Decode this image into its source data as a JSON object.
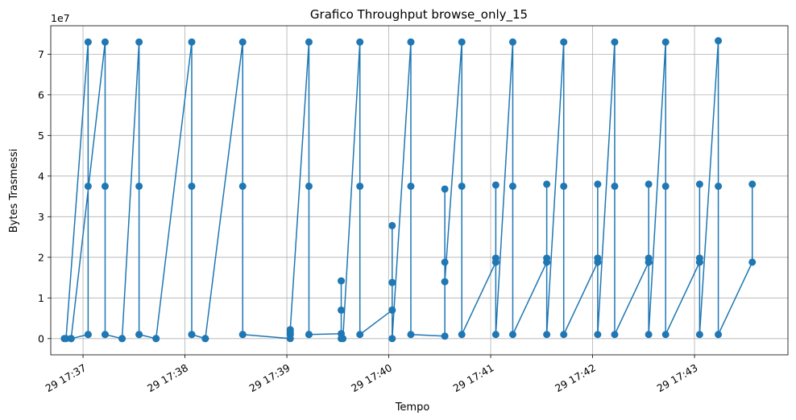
{
  "chart_data": {
    "type": "line",
    "title": "Grafico Throughput browse_only_15",
    "xlabel": "Tempo",
    "ylabel": "Bytes Trasmessi",
    "y_offset_label": "1e7",
    "y_scale": 10000000,
    "grid": true,
    "marker": "circle",
    "series_color": "#1f77b4",
    "ylim": [
      -0.4,
      7.7
    ],
    "xlim": [
      "17:36:41",
      "17:43:55"
    ],
    "x_ticks": [
      {
        "time": "17:37:00",
        "label": "29 17:37"
      },
      {
        "time": "17:38:00",
        "label": "29 17:38"
      },
      {
        "time": "17:39:00",
        "label": "29 17:39"
      },
      {
        "time": "17:40:00",
        "label": "29 17:40"
      },
      {
        "time": "17:41:00",
        "label": "29 17:41"
      },
      {
        "time": "17:42:00",
        "label": "29 17:42"
      },
      {
        "time": "17:43:00",
        "label": "29 17:43"
      }
    ],
    "y_ticks": [
      0,
      1,
      2,
      3,
      4,
      5,
      6,
      7
    ],
    "series": [
      {
        "x": [
          "17:36:49",
          "17:36:50",
          "17:37:03",
          "17:37:03",
          "17:37:03",
          "17:37:03",
          "17:36:53",
          "17:36:53",
          "17:37:13",
          "17:37:13",
          "17:37:13",
          "17:37:13",
          "17:37:23",
          "17:37:23",
          "17:37:33",
          "17:37:33",
          "17:37:33",
          "17:37:33",
          "17:37:43",
          "17:37:43",
          "17:38:04",
          "17:38:04",
          "17:38:04",
          "17:38:04",
          "17:38:12",
          "17:38:12",
          "17:38:34",
          "17:38:34",
          "17:38:34",
          "17:38:34",
          "17:39:02",
          "17:39:02",
          "17:39:02",
          "17:39:02",
          "17:39:13",
          "17:39:13",
          "17:39:13",
          "17:39:13",
          "17:39:32",
          "17:39:32",
          "17:39:32",
          "17:39:32",
          "17:39:33",
          "17:39:43",
          "17:39:43",
          "17:39:43",
          "17:40:02",
          "17:40:02",
          "17:40:02",
          "17:40:02",
          "17:40:02",
          "17:40:02",
          "17:40:13",
          "17:40:13",
          "17:40:13",
          "17:40:33",
          "17:40:33",
          "17:40:33",
          "17:40:33",
          "17:40:43",
          "17:40:43",
          "17:40:43",
          "17:41:03",
          "17:41:03",
          "17:41:03",
          "17:41:03",
          "17:41:03",
          "17:41:13",
          "17:41:13",
          "17:41:13",
          "17:41:33",
          "17:41:33",
          "17:41:33",
          "17:41:33",
          "17:41:33",
          "17:41:43",
          "17:41:43",
          "17:41:43",
          "17:42:03",
          "17:42:03",
          "17:42:03",
          "17:42:03",
          "17:42:03",
          "17:42:13",
          "17:42:13",
          "17:42:13",
          "17:42:33",
          "17:42:33",
          "17:42:33",
          "17:42:33",
          "17:42:33",
          "17:42:43",
          "17:42:43",
          "17:42:43",
          "17:43:03",
          "17:43:03",
          "17:43:03",
          "17:43:03",
          "17:43:03",
          "17:43:14",
          "17:43:14",
          "17:43:14",
          "17:43:34",
          "17:43:34"
        ],
        "values": [
          0.0,
          0.0,
          7.3,
          3.75,
          0.1,
          0.1,
          0.0,
          0.0,
          7.3,
          3.75,
          0.1,
          0.1,
          0.0,
          0.0,
          7.3,
          3.75,
          0.1,
          0.1,
          0.0,
          0.0,
          7.3,
          3.75,
          0.1,
          0.1,
          0.0,
          0.0,
          7.3,
          3.75,
          0.1,
          0.1,
          0.0,
          0.1,
          0.15,
          0.22,
          7.3,
          3.75,
          0.1,
          0.1,
          0.12,
          1.42,
          0.7,
          0.0,
          0.0,
          7.3,
          3.75,
          0.1,
          0.7,
          1.38,
          2.78,
          1.38,
          0.7,
          0.0,
          7.3,
          3.75,
          0.1,
          0.06,
          3.68,
          1.88,
          1.4,
          7.3,
          3.75,
          0.1,
          1.88,
          3.78,
          1.98,
          1.88,
          0.1,
          7.3,
          3.75,
          0.1,
          1.88,
          3.8,
          1.98,
          1.88,
          0.1,
          7.3,
          3.75,
          0.1,
          1.88,
          3.8,
          1.98,
          1.88,
          0.1,
          7.3,
          3.75,
          0.1,
          1.88,
          3.8,
          1.98,
          1.88,
          0.1,
          7.3,
          3.75,
          0.1,
          1.88,
          3.8,
          1.98,
          1.88,
          0.1,
          7.33,
          3.75,
          0.1,
          1.88,
          3.8
        ]
      }
    ]
  }
}
